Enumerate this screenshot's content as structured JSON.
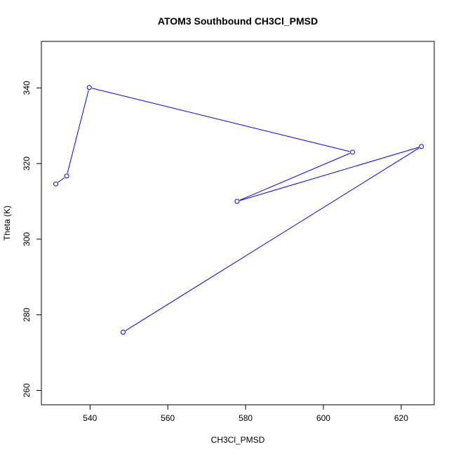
{
  "chart_data": {
    "type": "line",
    "title": "ATOM3 Southbound CH3Cl_PMSD",
    "xlabel": "CH3Cl_PMSD",
    "ylabel": "Theta (K)",
    "xlim": [
      527.5,
      628.5
    ],
    "ylim": [
      256.2,
      352.3
    ],
    "xticks": [
      540,
      560,
      580,
      600,
      620
    ],
    "yticks": [
      260,
      280,
      300,
      320,
      340
    ],
    "grid": false,
    "series": [
      {
        "color": "#0000ff",
        "marker": "open-circle",
        "x": [
          531.2,
          534.0,
          539.8,
          607.5,
          577.8,
          625.2,
          548.5
        ],
        "y": [
          314.6,
          316.7,
          340.1,
          323.0,
          310.0,
          324.5,
          275.4
        ]
      }
    ]
  }
}
